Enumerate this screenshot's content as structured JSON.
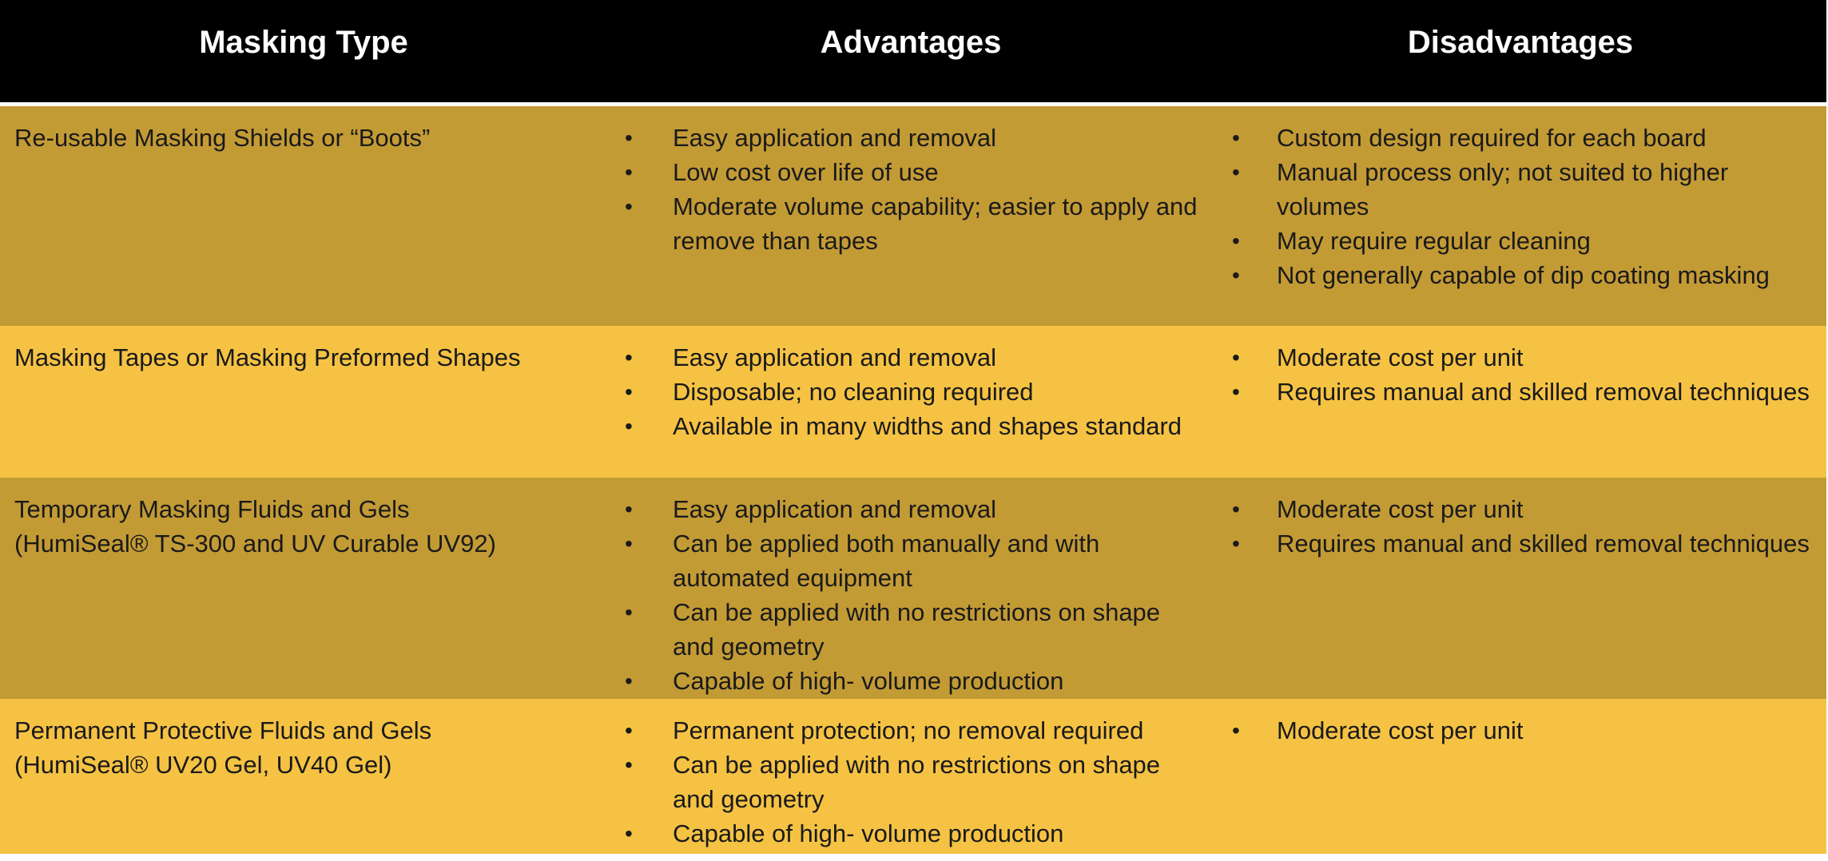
{
  "header": {
    "col1": "Masking Type",
    "col2": "Advantages",
    "col3": "Disadvantages"
  },
  "rows": [
    {
      "type_lines": [
        "Re-usable Masking Shields or “Boots”"
      ],
      "advantages": [
        "Easy application and removal",
        "Low cost over life of use",
        "Moderate volume capability; easier to apply and remove than tapes"
      ],
      "disadvantages": [
        "Custom design required for each board",
        "Manual process only; not suited to higher volumes",
        "May require regular cleaning",
        "Not generally capable of dip coating masking"
      ]
    },
    {
      "type_lines": [
        "Masking Tapes or Masking Preformed Shapes"
      ],
      "advantages": [
        "Easy application and removal",
        "Disposable; no cleaning required",
        "Available in many widths and shapes standard"
      ],
      "disadvantages": [
        "Moderate cost per unit",
        "Requires manual and skilled removal techniques"
      ]
    },
    {
      "type_lines": [
        "Temporary Masking Fluids and Gels",
        "(HumiSeal® TS-300 and UV Curable UV92)"
      ],
      "advantages": [
        "Easy application and removal",
        "Can be applied both manually and with automated equipment",
        "Can be applied with no restrictions on shape and geometry",
        "Capable of high- volume production"
      ],
      "disadvantages": [
        "Moderate cost per unit",
        "Requires manual and skilled removal techniques"
      ]
    },
    {
      "type_lines": [
        "Permanent Protective Fluids and Gels",
        "(HumiSeal® UV20 Gel, UV40 Gel)"
      ],
      "advantages": [
        "Permanent protection; no removal required",
        "Can be applied with no restrictions on shape and geometry",
        "Capable of high- volume production"
      ],
      "disadvantages": [
        "Moderate cost per unit"
      ]
    }
  ],
  "bullet_glyph": "•",
  "colors": {
    "header_bg": "#000000",
    "row_dark": "#c39b35",
    "row_light": "#f5c243",
    "text": "#1a1a1a"
  }
}
